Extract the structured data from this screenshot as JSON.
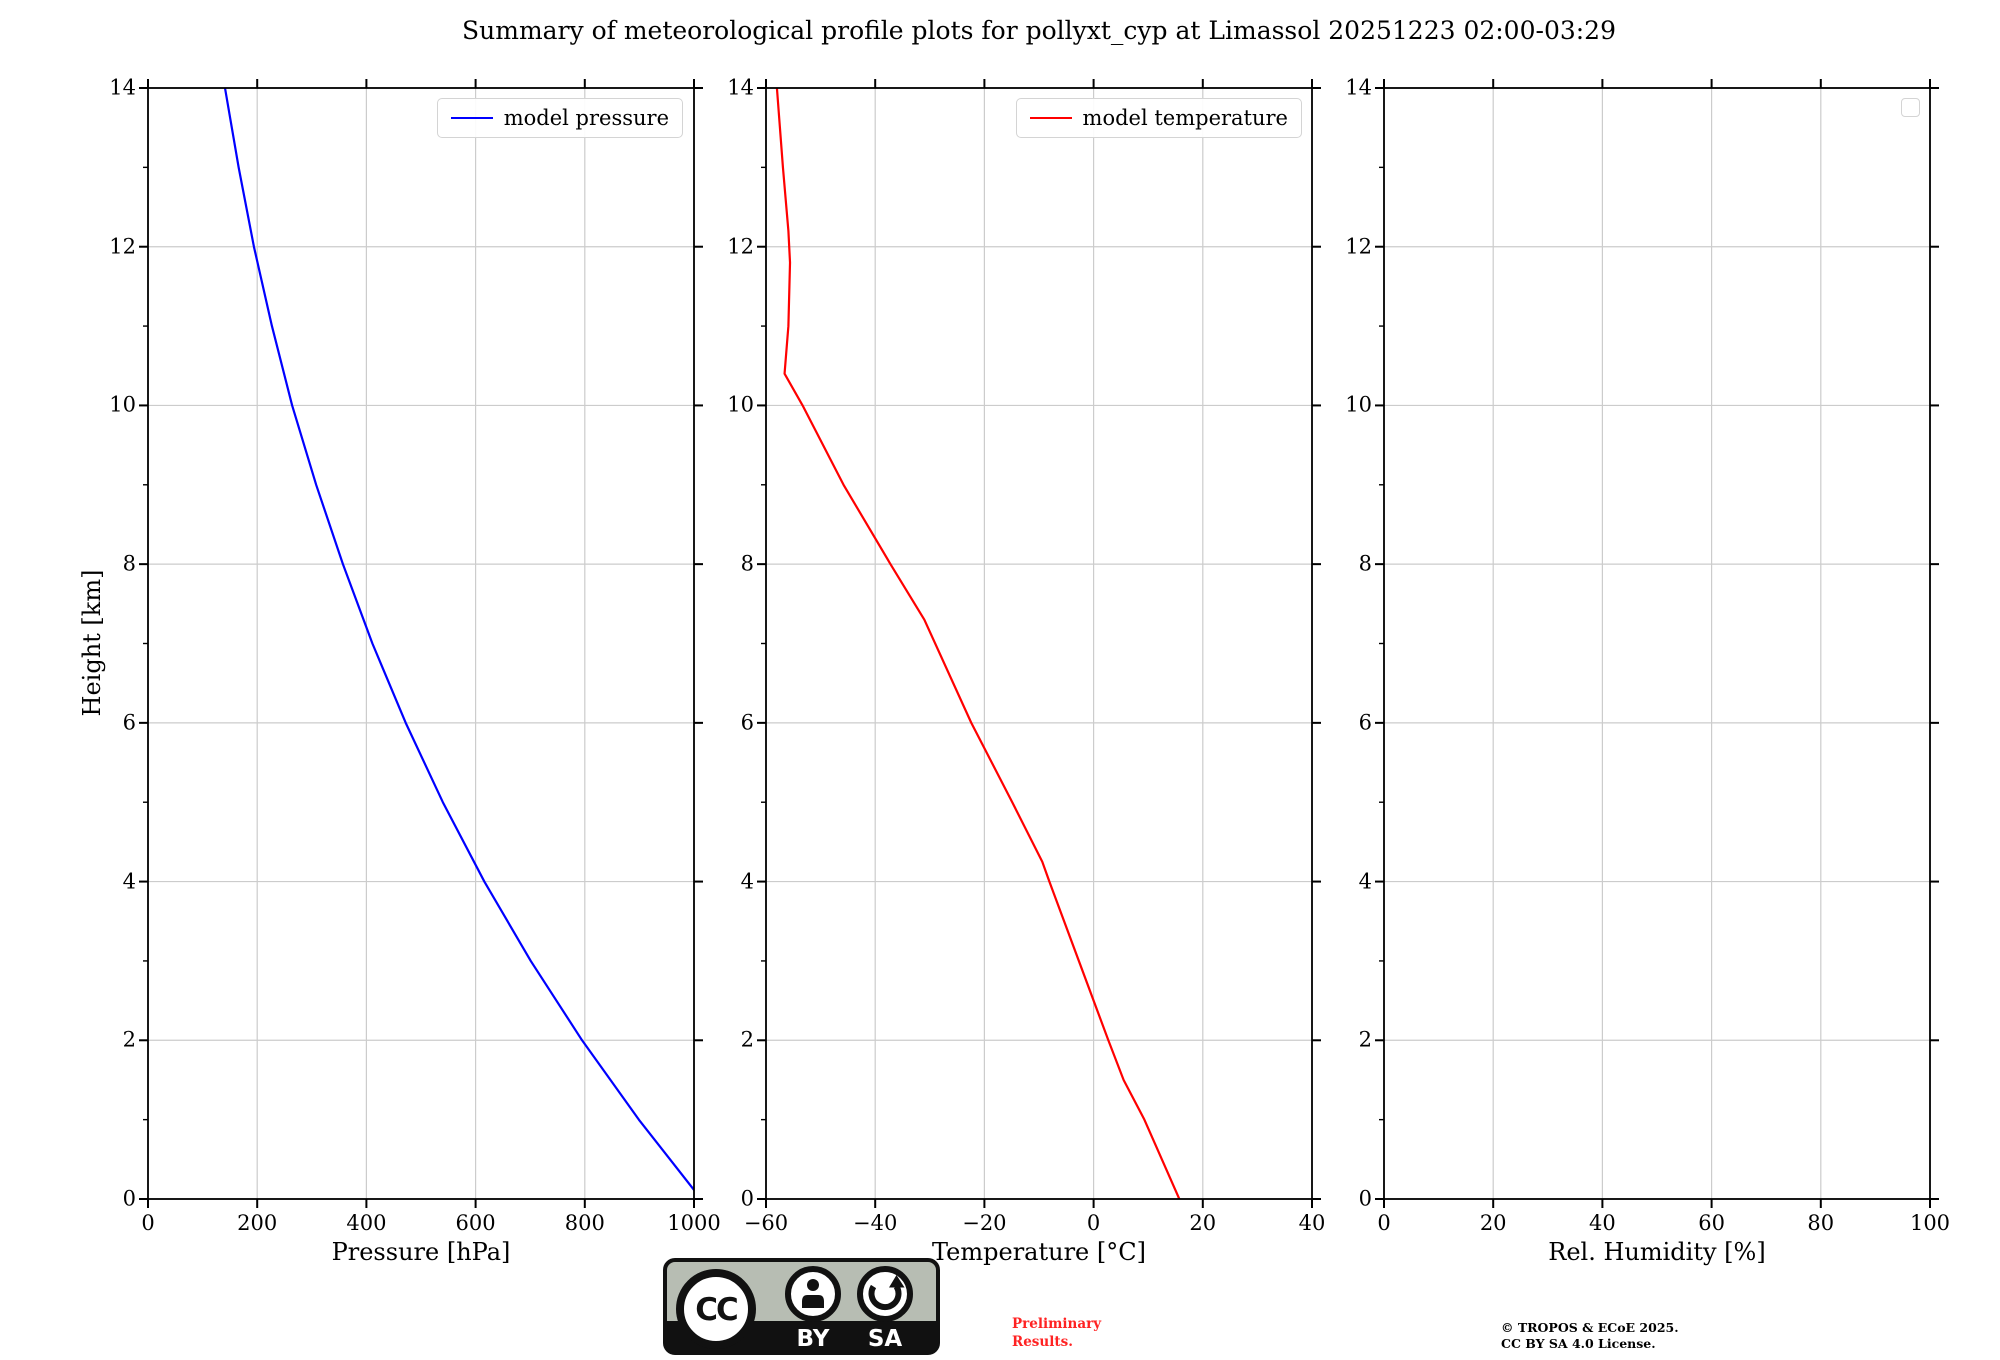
{
  "title": "Summary of meteorological profile plots for pollyxt_cyp at Limassol 20251223 02:00-03:29",
  "colors": {
    "pressure_line": "#0000ff",
    "temperature_line": "#ff0000",
    "grid": "#cccccc",
    "spine": "#000000",
    "preliminary_text": "#ff2222",
    "badge_background": "#b7bdb3",
    "badge_band": "#111111"
  },
  "chart_data": [
    {
      "type": "line",
      "xlabel": "Pressure [hPa]",
      "ylabel": "Height [km]",
      "xlim": [
        0,
        1000
      ],
      "ylim": [
        0,
        14
      ],
      "grid": true,
      "legend_position": "upper right",
      "xticks": [
        0,
        200,
        400,
        600,
        800,
        1000
      ],
      "xtick_labels": [
        "0",
        "200",
        "400",
        "600",
        "800",
        "1000"
      ],
      "yticks": [
        0,
        2,
        4,
        6,
        8,
        10,
        12,
        14
      ],
      "ytick_labels": [
        "0",
        "2",
        "4",
        "6",
        "8",
        "10",
        "12",
        "14"
      ],
      "yticks_minor": [
        1,
        3,
        5,
        7,
        9,
        11,
        13
      ],
      "series": [
        {
          "name": "model pressure",
          "color": "#0000ff",
          "points": [
            [
              1013,
              0
            ],
            [
              899,
              1
            ],
            [
              795,
              2
            ],
            [
              701,
              3
            ],
            [
              616,
              4
            ],
            [
              540,
              5
            ],
            [
              472,
              6
            ],
            [
              411,
              7
            ],
            [
              357,
              8
            ],
            [
              308,
              9
            ],
            [
              264,
              10
            ],
            [
              227,
              11
            ],
            [
              194,
              12
            ],
            [
              166,
              13
            ],
            [
              141,
              14
            ]
          ]
        }
      ]
    },
    {
      "type": "line",
      "xlabel": "Temperature [°C]",
      "ylabel": "Height [km]",
      "xlim": [
        -60,
        40
      ],
      "ylim": [
        0,
        14
      ],
      "grid": true,
      "legend_position": "upper right",
      "xticks": [
        -60,
        -40,
        -20,
        0,
        20,
        40
      ],
      "xtick_labels": [
        "−60",
        "−40",
        "−20",
        "0",
        "20",
        "40"
      ],
      "yticks": [
        0,
        2,
        4,
        6,
        8,
        10,
        12,
        14
      ],
      "ytick_labels": [
        "0",
        "2",
        "4",
        "6",
        "8",
        "10",
        "12",
        "14"
      ],
      "yticks_minor": [
        1,
        3,
        5,
        7,
        9,
        11,
        13
      ],
      "series": [
        {
          "name": "model temperature",
          "color": "#ff0000",
          "points": [
            [
              15.7,
              0
            ],
            [
              12.5,
              0.5
            ],
            [
              9.3,
              1
            ],
            [
              5.5,
              1.5
            ],
            [
              2.7,
              2
            ],
            [
              -2.7,
              3
            ],
            [
              -8.1,
              4
            ],
            [
              -9.4,
              4.25
            ],
            [
              -14.9,
              5
            ],
            [
              -22.4,
              6
            ],
            [
              -31.0,
              7.3
            ],
            [
              -37.2,
              8
            ],
            [
              -45.8,
              9
            ],
            [
              -53.3,
              10
            ],
            [
              -56.6,
              10.4
            ],
            [
              -55.9,
              11
            ],
            [
              -55.6,
              11.8
            ],
            [
              -55.9,
              12.2
            ],
            [
              -56.9,
              13
            ],
            [
              -58.0,
              14
            ]
          ]
        }
      ]
    },
    {
      "type": "line",
      "xlabel": "Rel. Humidity [%]",
      "ylabel": "Height [km]",
      "xlim": [
        0,
        100
      ],
      "ylim": [
        0,
        14
      ],
      "grid": true,
      "legend_position": "upper right",
      "xticks": [
        0,
        20,
        40,
        60,
        80,
        100
      ],
      "xtick_labels": [
        "0",
        "20",
        "40",
        "60",
        "80",
        "100"
      ],
      "yticks": [
        0,
        2,
        4,
        6,
        8,
        10,
        12,
        14
      ],
      "ytick_labels": [
        "0",
        "2",
        "4",
        "6",
        "8",
        "10",
        "12",
        "14"
      ],
      "yticks_minor": [
        1,
        3,
        5,
        7,
        9,
        11,
        13
      ],
      "series": []
    }
  ],
  "footer": {
    "badge": {
      "cc": "CC",
      "by": "BY",
      "sa": "SA"
    },
    "preliminary": "Preliminary\nResults.",
    "copyright": "© TROPOS & ECoE 2025.\nCC BY SA 4.0 License."
  }
}
